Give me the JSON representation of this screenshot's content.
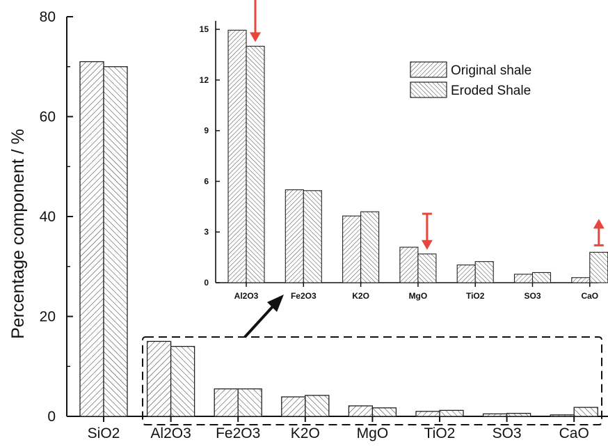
{
  "chart_data": [
    {
      "type": "bar",
      "categories": [
        "SiO2",
        "Al2O3",
        "Fe2O3",
        "K2O",
        "MgO",
        "TiO2",
        "SO3",
        "CaO"
      ],
      "series": [
        {
          "name": "Original shale",
          "values": [
            71.0,
            15.0,
            5.5,
            3.9,
            2.1,
            1.0,
            0.5,
            0.3
          ]
        },
        {
          "name": "Eroded Shale",
          "values": [
            70.0,
            14.0,
            5.5,
            4.2,
            1.7,
            1.2,
            0.6,
            1.8
          ]
        }
      ],
      "title": "",
      "xlabel": "",
      "ylabel": "Percentage component / %",
      "ylim": [
        0,
        80
      ],
      "yticks": [
        "0",
        "20",
        "40",
        "60",
        "80"
      ],
      "grid": false,
      "highlight_box": {
        "categories": [
          "Al2O3",
          "CaO"
        ],
        "style": "dashed"
      }
    },
    {
      "type": "bar",
      "role": "inset",
      "categories": [
        "Al2O3",
        "Fe2O3",
        "K2O",
        "MgO",
        "TiO2",
        "SO3",
        "CaO"
      ],
      "series": [
        {
          "name": "Original shale",
          "values": [
            14.95,
            5.5,
            3.95,
            2.1,
            1.05,
            0.5,
            0.3
          ]
        },
        {
          "name": "Eroded Shale",
          "values": [
            14.0,
            5.45,
            4.2,
            1.7,
            1.25,
            0.6,
            1.8
          ]
        }
      ],
      "ylim": [
        0,
        15.5
      ],
      "yticks": [
        "0",
        "3",
        "6",
        "9",
        "12",
        "15"
      ],
      "legend": {
        "position": "top-right",
        "entries": [
          "Original shale",
          "Eroded Shale"
        ]
      },
      "annotations": [
        {
          "category": "Al2O3",
          "direction": "down"
        },
        {
          "category": "MgO",
          "direction": "down"
        },
        {
          "category": "CaO",
          "direction": "up"
        }
      ],
      "colors": {
        "hatch": "#333333",
        "arrow": "#e8453c",
        "pointer": "#111111"
      }
    }
  ]
}
